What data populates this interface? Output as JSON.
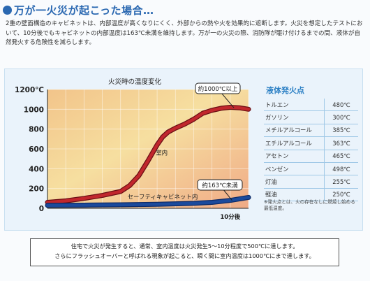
{
  "heading": {
    "title": "万が一火災が起こった場合…"
  },
  "intro": {
    "text": "2重の壁面構造のキャビネットは、内部温度が高くなりにくく、外部からの熱や火を効果的に遮断します。火災を想定したテストにおいて、10分後でもキャビネットの内部温度は163℃未満を維持します。万が一の火災の際、消防隊が駆け付けるまでの間、液体が自然発火する危険性を減らします。"
  },
  "chart_data": {
    "type": "line",
    "title": "火災時の温度変化",
    "xlabel": "",
    "ylabel": "",
    "ylim": [
      0,
      1200
    ],
    "yticks": [
      "0",
      "200",
      "400",
      "600",
      "800",
      "1000",
      "1200℃"
    ],
    "xticks": [
      "10分後"
    ],
    "xlim": [
      0,
      11
    ],
    "series": [
      {
        "name": "室内",
        "color": "#c1272d",
        "x": [
          0,
          1,
          2,
          3,
          4,
          4.5,
          5,
          5.5,
          6,
          6.3,
          6.6,
          7,
          7.5,
          8,
          8.5,
          9,
          9.5,
          10,
          10.5,
          11
        ],
        "y": [
          60,
          75,
          100,
          130,
          170,
          230,
          330,
          480,
          640,
          720,
          770,
          810,
          850,
          900,
          960,
          990,
          1010,
          1020,
          1015,
          1000
        ]
      },
      {
        "name": "セーフティキャビネット内",
        "color": "#1b4a9c",
        "x": [
          0,
          2,
          4,
          6,
          8,
          9,
          10,
          11
        ],
        "y": [
          30,
          32,
          35,
          40,
          50,
          60,
          80,
          110
        ]
      }
    ],
    "callouts": [
      {
        "text": "約1000℃以上",
        "series": "室内"
      },
      {
        "text": "約163℃未満",
        "series": "セーフティキャビネット内"
      }
    ]
  },
  "flashpoint": {
    "title": "液体発火点",
    "rows": [
      {
        "name": "トルエン",
        "value": "480℃"
      },
      {
        "name": "ガソリン",
        "value": "300℃"
      },
      {
        "name": "メチルアルコール",
        "value": "385℃"
      },
      {
        "name": "エチルアルコール",
        "value": "363℃"
      },
      {
        "name": "アセトン",
        "value": "465℃"
      },
      {
        "name": "ベンゼン",
        "value": "498℃"
      },
      {
        "name": "灯油",
        "value": "255℃"
      },
      {
        "name": "軽油",
        "value": "250℃"
      }
    ],
    "note": "※発火点とは、火の存在なしに燃焼し始める最低温度。"
  },
  "bottom": {
    "line1": "住宅で火災が発生すると、通常、室内温度は火災発生5～10分程度で500℃に達します。",
    "line2": "さらにフラッシュオーバーと呼ばれる現象が起こると、瞬く間に室内温度は1000℃にまで達します。"
  },
  "colors": {
    "accent": "#2a68b1",
    "room": "#c1272d",
    "cabinet": "#1b4a9c"
  }
}
